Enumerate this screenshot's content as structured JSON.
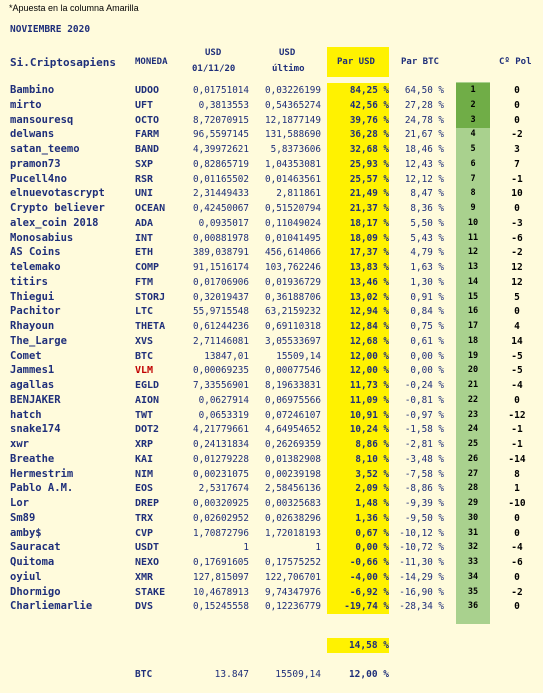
{
  "note": "*Apuesta en la columna Amarilla",
  "month": "NOVIEMBRE 2020",
  "headers": {
    "name": "Si.Criptosapiens",
    "coin": "MONEDA",
    "usd_start_1": "USD",
    "usd_start_2": "01/11/20",
    "usd_last_1": "USD",
    "usd_last_2": "último",
    "par_usd": "Par USD",
    "par_btc": "Par BTC",
    "pos": "Cº Pol"
  },
  "rows": [
    {
      "name": "Bambino",
      "coin": "UDOO",
      "usd_start": "0,01751014",
      "usd_last": "0,03226199",
      "par_usd": "84,25 %",
      "par_btc": "64,50 %",
      "rank": "1",
      "pos": "0"
    },
    {
      "name": "mirto",
      "coin": "UFT",
      "usd_start": "0,3813553",
      "usd_last": "0,54365274",
      "par_usd": "42,56 %",
      "par_btc": "27,28 %",
      "rank": "2",
      "pos": "0"
    },
    {
      "name": "mansouresq",
      "coin": "OCTO",
      "usd_start": "8,72070915",
      "usd_last": "12,1877149",
      "par_usd": "39,76 %",
      "par_btc": "24,78 %",
      "rank": "3",
      "pos": "0"
    },
    {
      "name": "delwans",
      "coin": "FARM",
      "usd_start": "96,5597145",
      "usd_last": "131,588690",
      "par_usd": "36,28 %",
      "par_btc": "21,67 %",
      "rank": "4",
      "pos": "-2"
    },
    {
      "name": "satan_teemo",
      "coin": "BAND",
      "usd_start": "4,39972621",
      "usd_last": "5,8373606",
      "par_usd": "32,68 %",
      "par_btc": "18,46 %",
      "rank": "5",
      "pos": "3"
    },
    {
      "name": "pramon73",
      "coin": "SXP",
      "usd_start": "0,82865719",
      "usd_last": "1,04353081",
      "par_usd": "25,93 %",
      "par_btc": "12,43 %",
      "rank": "6",
      "pos": "7"
    },
    {
      "name": "Pucell4no",
      "coin": "RSR",
      "usd_start": "0,01165502",
      "usd_last": "0,01463561",
      "par_usd": "25,57 %",
      "par_btc": "12,12 %",
      "rank": "7",
      "pos": "-1"
    },
    {
      "name": "elnuevotascrypt",
      "coin": "UNI",
      "usd_start": "2,31449433",
      "usd_last": "2,811861",
      "par_usd": "21,49 %",
      "par_btc": "8,47 %",
      "rank": "8",
      "pos": "10"
    },
    {
      "name": "Crypto believer",
      "coin": "OCEAN",
      "usd_start": "0,42450067",
      "usd_last": "0,51520794",
      "par_usd": "21,37 %",
      "par_btc": "8,36 %",
      "rank": "9",
      "pos": "0"
    },
    {
      "name": "alex_coin 2018",
      "coin": "ADA",
      "usd_start": "0,0935017",
      "usd_last": "0,11049024",
      "par_usd": "18,17 %",
      "par_btc": "5,50 %",
      "rank": "10",
      "pos": "-3"
    },
    {
      "name": "Monosabius",
      "coin": "INT",
      "usd_start": "0,00881978",
      "usd_last": "0,01041495",
      "par_usd": "18,09 %",
      "par_btc": "5,43 %",
      "rank": "11",
      "pos": "-6"
    },
    {
      "name": "AS Coins",
      "coin": "ETH",
      "usd_start": "389,038791",
      "usd_last": "456,614066",
      "par_usd": "17,37 %",
      "par_btc": "4,79 %",
      "rank": "12",
      "pos": "-2"
    },
    {
      "name": "telemako",
      "coin": "COMP",
      "usd_start": "91,1516174",
      "usd_last": "103,762246",
      "par_usd": "13,83 %",
      "par_btc": "1,63 %",
      "rank": "13",
      "pos": "12"
    },
    {
      "name": "titirs",
      "coin": "FTM",
      "usd_start": "0,01706906",
      "usd_last": "0,01936729",
      "par_usd": "13,46 %",
      "par_btc": "1,30 %",
      "rank": "14",
      "pos": "12"
    },
    {
      "name": "Thiegui",
      "coin": "STORJ",
      "usd_start": "0,32019437",
      "usd_last": "0,36188706",
      "par_usd": "13,02 %",
      "par_btc": "0,91 %",
      "rank": "15",
      "pos": "5"
    },
    {
      "name": "Pachitor",
      "coin": "LTC",
      "usd_start": "55,9715548",
      "usd_last": "63,2159232",
      "par_usd": "12,94 %",
      "par_btc": "0,84 %",
      "rank": "16",
      "pos": "0"
    },
    {
      "name": "Rhayoun",
      "coin": "THETA",
      "usd_start": "0,61244236",
      "usd_last": "0,69110318",
      "par_usd": "12,84 %",
      "par_btc": "0,75 %",
      "rank": "17",
      "pos": "4"
    },
    {
      "name": "The_Large",
      "coin": "XVS",
      "usd_start": "2,71146081",
      "usd_last": "3,05533697",
      "par_usd": "12,68 %",
      "par_btc": "0,61 %",
      "rank": "18",
      "pos": "14"
    },
    {
      "name": "Comet",
      "coin": "BTC",
      "usd_start": "13847,01",
      "usd_last": "15509,14",
      "par_usd": "12,00 %",
      "par_btc": "0,00 %",
      "rank": "19",
      "pos": "-5"
    },
    {
      "name": "Jammes1",
      "coin": "VLM",
      "usd_start": "0,00069235",
      "usd_last": "0,00077546",
      "par_usd": "12,00 %",
      "par_btc": "0,00 %",
      "rank": "20",
      "pos": "-5",
      "coin_red": true
    },
    {
      "name": "agallas",
      "coin": "EGLD",
      "usd_start": "7,33556901",
      "usd_last": "8,19633831",
      "par_usd": "11,73 %",
      "par_btc": "-0,24 %",
      "rank": "21",
      "pos": "-4"
    },
    {
      "name": "BENJAKER",
      "coin": "AION",
      "usd_start": "0,0627914",
      "usd_last": "0,06975566",
      "par_usd": "11,09 %",
      "par_btc": "-0,81 %",
      "rank": "22",
      "pos": "0"
    },
    {
      "name": "hatch",
      "coin": "TWT",
      "usd_start": "0,0653319",
      "usd_last": "0,07246107",
      "par_usd": "10,91 %",
      "par_btc": "-0,97 %",
      "rank": "23",
      "pos": "-12"
    },
    {
      "name": "snake174",
      "coin": "DOT2",
      "usd_start": "4,21779661",
      "usd_last": "4,64954652",
      "par_usd": "10,24 %",
      "par_btc": "-1,58 %",
      "rank": "24",
      "pos": "-1"
    },
    {
      "name": "xwr",
      "coin": "XRP",
      "usd_start": "0,24131834",
      "usd_last": "0,26269359",
      "par_usd": "8,86 %",
      "par_btc": "-2,81 %",
      "rank": "25",
      "pos": "-1"
    },
    {
      "name": "Breathe",
      "coin": "KAI",
      "usd_start": "0,01279228",
      "usd_last": "0,01382908",
      "par_usd": "8,10 %",
      "par_btc": "-3,48 %",
      "rank": "26",
      "pos": "-14"
    },
    {
      "name": "Hermestrim",
      "coin": "NIM",
      "usd_start": "0,00231075",
      "usd_last": "0,00239198",
      "par_usd": "3,52 %",
      "par_btc": "-7,58 %",
      "rank": "27",
      "pos": "8"
    },
    {
      "name": "Pablo A.M.",
      "coin": "EOS",
      "usd_start": "2,5317674",
      "usd_last": "2,58456136",
      "par_usd": "2,09 %",
      "par_btc": "-8,86 %",
      "rank": "28",
      "pos": "1"
    },
    {
      "name": "Lor",
      "coin": "DREP",
      "usd_start": "0,00320925",
      "usd_last": "0,00325683",
      "par_usd": "1,48 %",
      "par_btc": "-9,39 %",
      "rank": "29",
      "pos": "-10"
    },
    {
      "name": "Sm89",
      "coin": "TRX",
      "usd_start": "0,02602952",
      "usd_last": "0,02638296",
      "par_usd": "1,36 %",
      "par_btc": "-9,50 %",
      "rank": "30",
      "pos": "0"
    },
    {
      "name": "amby$",
      "coin": "CVP",
      "usd_start": "1,70872796",
      "usd_last": "1,72018193",
      "par_usd": "0,67 %",
      "par_btc": "-10,12 %",
      "rank": "31",
      "pos": "0"
    },
    {
      "name": "Sauracat",
      "coin": "USDT",
      "usd_start": "1",
      "usd_last": "1",
      "par_usd": "0,00 %",
      "par_btc": "-10,72 %",
      "rank": "32",
      "pos": "-4"
    },
    {
      "name": "Quitoma",
      "coin": "NEXO",
      "usd_start": "0,17691605",
      "usd_last": "0,17575252",
      "par_usd": "-0,66 %",
      "par_btc": "-11,30 %",
      "rank": "33",
      "pos": "-6"
    },
    {
      "name": "oyiul",
      "coin": "XMR",
      "usd_start": "127,815097",
      "usd_last": "122,706701",
      "par_usd": "-4,00 %",
      "par_btc": "-14,29 %",
      "rank": "34",
      "pos": "0"
    },
    {
      "name": "Dhormigo",
      "coin": "STAKE",
      "usd_start": "10,4678913",
      "usd_last": "9,74347976",
      "par_usd": "-6,92 %",
      "par_btc": "-16,90 %",
      "rank": "35",
      "pos": "-2"
    },
    {
      "name": "Charliemarlie",
      "coin": "DVS",
      "usd_start": "0,15245558",
      "usd_last": "0,12236779",
      "par_usd": "-19,74 %",
      "par_btc": "-28,34 %",
      "rank": "36",
      "pos": "0"
    }
  ],
  "total_par_usd": "14,58 %",
  "footer": {
    "coin": "BTC",
    "usd_start": "13.847",
    "usd_last": "15509,14",
    "par_usd": "12,00 %"
  },
  "colors": {
    "background": "#fffbdc",
    "text": "#1f2f7a",
    "yellow": "#fff200",
    "rank_top": "#70ad47",
    "rank_other": "#a9d18e",
    "red_coin": "#c00000"
  }
}
